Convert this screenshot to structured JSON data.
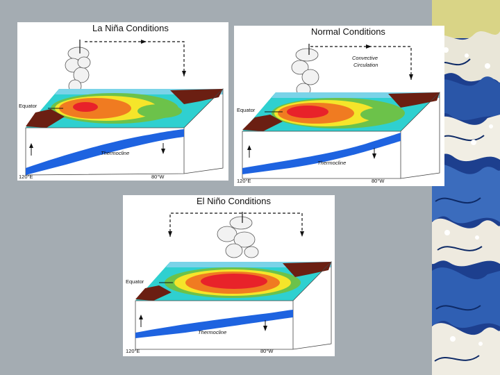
{
  "slide": {
    "background": "#a4acb2",
    "wave_art": "wave-border"
  },
  "panels": {
    "la_nina": {
      "title": "La Niña Conditions",
      "equator": "Equator",
      "thermocline": "Thermocline",
      "lon_left": "120°E",
      "lon_right": "80°W"
    },
    "normal": {
      "title": "Normal Conditions",
      "circulation_line1": "Convective",
      "circulation_line2": "Circulation",
      "equator": "Equator",
      "thermocline": "Thermocline",
      "lon_left": "120°E",
      "lon_right": "80°W"
    },
    "el_nino": {
      "title": "El Niño Conditions",
      "equator": "Equator",
      "thermocline": "Thermocline",
      "lon_left": "120°E",
      "lon_right": "80°W"
    }
  },
  "colors": {
    "warm_core": "#e8222a",
    "warm": "#f07b21",
    "mild": "#f5e52a",
    "cool": "#6cc24a",
    "cold": "#2fd0d0",
    "land": "#6b1f12",
    "thermocline_water": "#1e63e0"
  }
}
